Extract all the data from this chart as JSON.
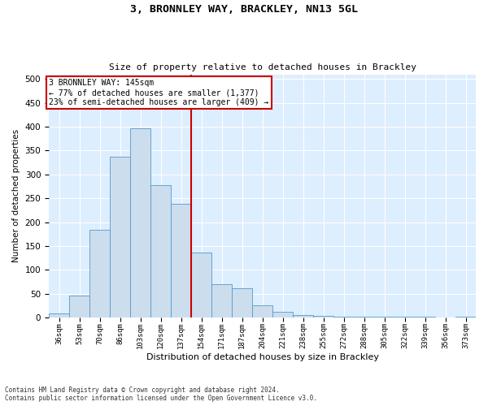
{
  "title": "3, BRONNLEY WAY, BRACKLEY, NN13 5GL",
  "subtitle": "Size of property relative to detached houses in Brackley",
  "xlabel": "Distribution of detached houses by size in Brackley",
  "ylabel": "Number of detached properties",
  "footnote1": "Contains HM Land Registry data © Crown copyright and database right 2024.",
  "footnote2": "Contains public sector information licensed under the Open Government Licence v3.0.",
  "annotation_line1": "3 BRONNLEY WAY: 145sqm",
  "annotation_line2": "← 77% of detached houses are smaller (1,377)",
  "annotation_line3": "23% of semi-detached houses are larger (409) →",
  "bar_color": "#ccdded",
  "bar_edge_color": "#5599cc",
  "vline_x": 146.5,
  "vline_color": "#cc0000",
  "background_color": "#ddeeff",
  "categories": [
    "36sqm",
    "53sqm",
    "70sqm",
    "86sqm",
    "103sqm",
    "120sqm",
    "137sqm",
    "154sqm",
    "171sqm",
    "187sqm",
    "204sqm",
    "221sqm",
    "238sqm",
    "255sqm",
    "272sqm",
    "288sqm",
    "305sqm",
    "322sqm",
    "339sqm",
    "356sqm",
    "373sqm"
  ],
  "bin_edges": [
    27.5,
    44.5,
    61.5,
    78.5,
    95.5,
    112.5,
    129.5,
    146.5,
    163.5,
    180.5,
    197.5,
    214.5,
    231.5,
    248.5,
    265.5,
    282.5,
    299.5,
    316.5,
    333.5,
    350.5,
    367.5,
    384.5
  ],
  "values": [
    8,
    46,
    184,
    337,
    397,
    277,
    238,
    136,
    70,
    62,
    25,
    11,
    5,
    4,
    2,
    2,
    1,
    1,
    1,
    0,
    2
  ],
  "ylim": [
    0,
    510
  ],
  "yticks": [
    0,
    50,
    100,
    150,
    200,
    250,
    300,
    350,
    400,
    450,
    500
  ]
}
